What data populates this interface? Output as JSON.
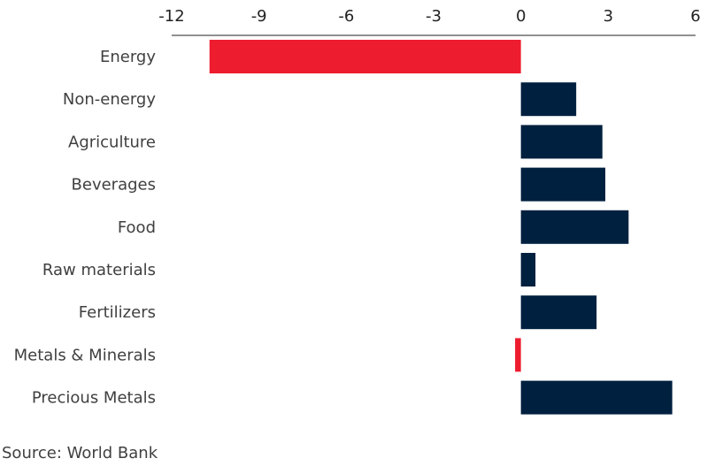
{
  "chart_data": {
    "type": "bar",
    "orientation": "horizontal",
    "categories": [
      "Energy",
      "Non-energy",
      "Agriculture",
      "Beverages",
      "Food",
      "Raw materials",
      "Fertilizers",
      "Metals & Minerals",
      "Precious Metals"
    ],
    "values": [
      -10.7,
      1.9,
      2.8,
      2.9,
      3.7,
      0.5,
      2.6,
      -0.2,
      5.2
    ],
    "xlim": [
      -12,
      6
    ],
    "xticks": [
      "-12",
      "-9",
      "-6",
      "-3",
      "0",
      "3",
      "6"
    ],
    "xtick_values": [
      -12,
      -9,
      -6,
      -3,
      0,
      3,
      6
    ],
    "axis_position": "top",
    "grid": false,
    "colors": {
      "positive": "#00203f",
      "negative": "#ed1c2e",
      "axis": "#222222"
    }
  },
  "source": "Source: World Bank"
}
